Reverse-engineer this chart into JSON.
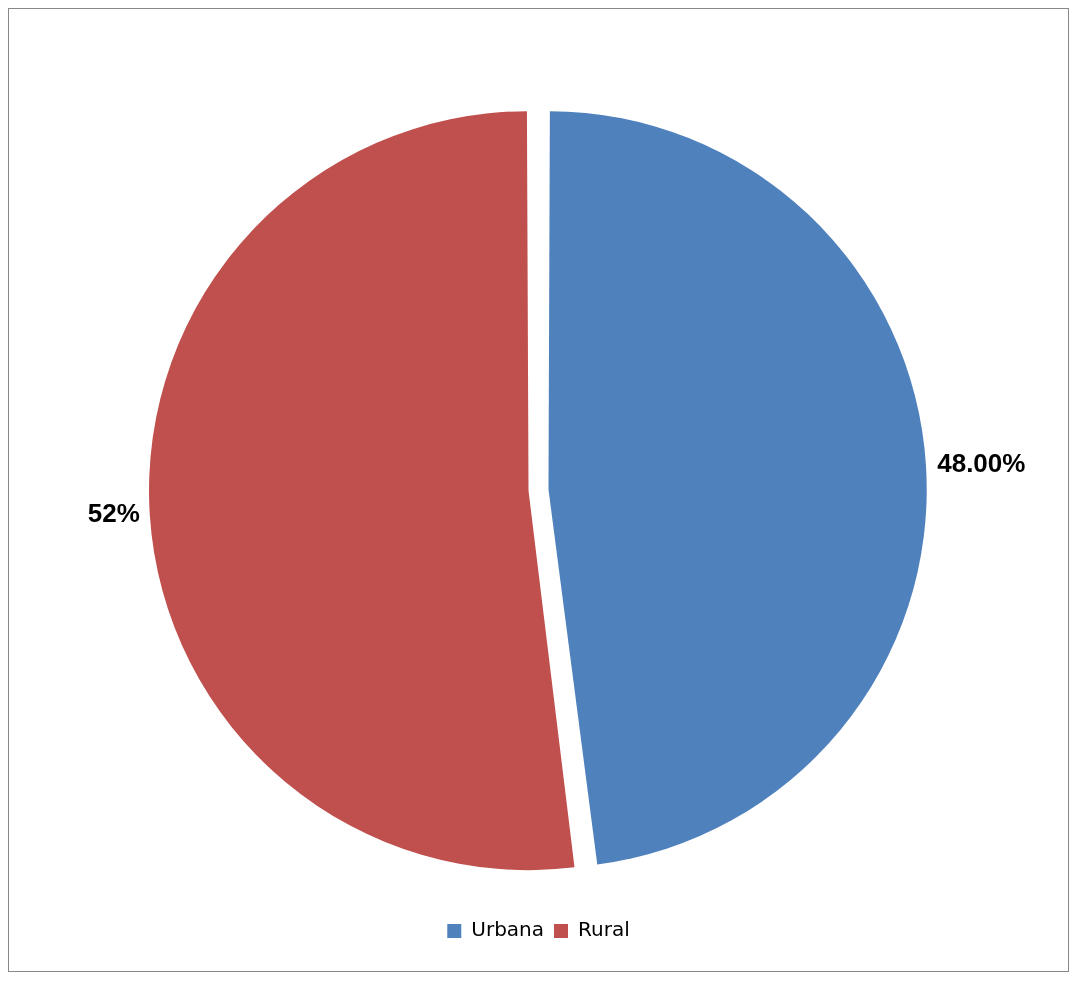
{
  "chart_data": {
    "type": "pie",
    "categories": [
      "Urbana",
      "Rural"
    ],
    "values": [
      48,
      52
    ],
    "colors": [
      "#4f81bd",
      "#c0504d"
    ],
    "value_labels": [
      "48.00%",
      "52%"
    ],
    "legend": "bottom"
  }
}
